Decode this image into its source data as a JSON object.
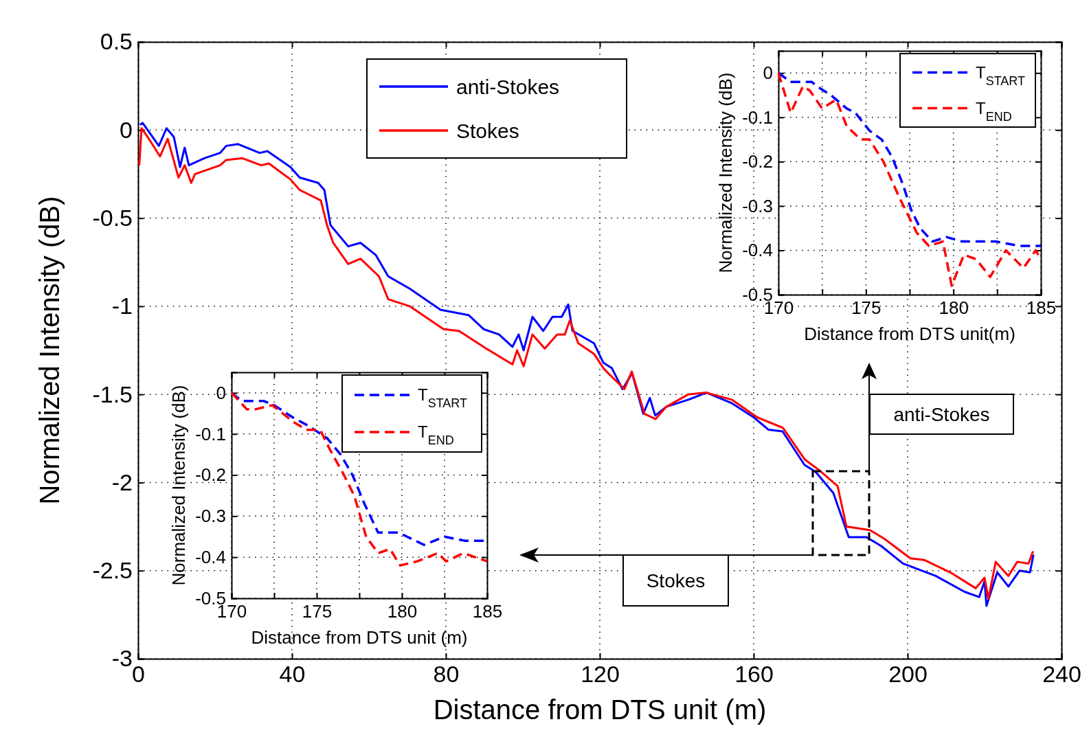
{
  "chart_data": [
    {
      "type": "line",
      "xlabel": "Distance from DTS unit (m)",
      "ylabel": "Normalized Intensity (dB)",
      "xlim": [
        0,
        240
      ],
      "ylim": [
        -3,
        0.5
      ],
      "xticks": [
        0,
        40,
        80,
        120,
        160,
        200,
        240
      ],
      "yticks": [
        0.5,
        0,
        -0.5,
        -1,
        -1.5,
        -2,
        -2.5,
        -3
      ],
      "grid": true,
      "legend": "top",
      "line_style": "solid",
      "annotations": [
        "anti-Stokes",
        "Stokes"
      ],
      "series": [
        {
          "name": "anti-Stokes",
          "color": "#0000ff",
          "x": [
            0.5,
            1.2,
            5.4,
            7.4,
            9.3,
            10.9,
            12.1,
            13.2,
            17.2,
            21.3,
            22.9,
            26.0,
            31.6,
            33.6,
            39.6,
            42.0,
            46.8,
            48.4,
            50.0,
            54.6,
            57.8,
            61.8,
            65.0,
            70.6,
            78.6,
            85.9,
            89.8,
            93.8,
            97.3,
            98.9,
            100.2,
            102.5,
            105.3,
            107.7,
            110.1,
            111.8,
            112.9,
            118.5,
            120.9,
            123.1,
            125.9,
            128.4,
            131.3,
            133.0,
            134.4,
            137.3,
            143.0,
            147.7,
            154.3,
            160.0,
            163.8,
            167.5,
            173.2,
            176.1,
            180.7,
            184.7,
            189.3,
            193.1,
            198.8,
            207.3,
            214.8,
            218.6,
            220.0,
            220.5,
            223.3,
            226.2,
            229.1,
            231.8,
            232.7
          ],
          "values": [
            0.03,
            0.04,
            -0.09,
            0.01,
            -0.04,
            -0.21,
            -0.1,
            -0.2,
            -0.16,
            -0.13,
            -0.09,
            -0.08,
            -0.13,
            -0.12,
            -0.21,
            -0.27,
            -0.3,
            -0.34,
            -0.54,
            -0.66,
            -0.64,
            -0.71,
            -0.83,
            -0.9,
            -1.02,
            -1.05,
            -1.13,
            -1.16,
            -1.23,
            -1.16,
            -1.25,
            -1.06,
            -1.14,
            -1.06,
            -1.06,
            -0.99,
            -1.14,
            -1.21,
            -1.32,
            -1.35,
            -1.47,
            -1.38,
            -1.61,
            -1.52,
            -1.62,
            -1.57,
            -1.53,
            -1.49,
            -1.55,
            -1.63,
            -1.7,
            -1.71,
            -1.9,
            -1.94,
            -2.06,
            -2.31,
            -2.31,
            -2.36,
            -2.46,
            -2.53,
            -2.62,
            -2.65,
            -2.56,
            -2.7,
            -2.51,
            -2.59,
            -2.5,
            -2.51,
            -2.41
          ]
        },
        {
          "name": "Stokes",
          "color": "#ff0000",
          "x": [
            0.3,
            0.9,
            2.5,
            5.7,
            7.7,
            10.5,
            12.1,
            13.8,
            14.8,
            21.3,
            22.9,
            27.1,
            32.0,
            34.0,
            39.6,
            42.0,
            47.5,
            49.1,
            50.7,
            54.6,
            57.8,
            62.6,
            65.0,
            70.6,
            79.4,
            83.4,
            90.5,
            97.3,
            98.5,
            100.2,
            102.5,
            105.7,
            108.9,
            110.9,
            112.2,
            114.4,
            118.5,
            120.9,
            122.2,
            126.4,
            128.3,
            131.6,
            134.5,
            137.3,
            143.0,
            147.7,
            154.3,
            160.9,
            167.6,
            173.3,
            177.0,
            181.8,
            184.1,
            190.2,
            194.0,
            200.7,
            204.4,
            211.1,
            217.7,
            220.0,
            221.0,
            222.9,
            226.2,
            228.5,
            231.4,
            232.6
          ],
          "values": [
            -0.2,
            0.01,
            -0.04,
            -0.15,
            -0.05,
            -0.27,
            -0.2,
            -0.3,
            -0.25,
            -0.2,
            -0.17,
            -0.16,
            -0.2,
            -0.19,
            -0.28,
            -0.34,
            -0.4,
            -0.54,
            -0.64,
            -0.76,
            -0.73,
            -0.83,
            -0.96,
            -1.0,
            -1.13,
            -1.14,
            -1.24,
            -1.33,
            -1.25,
            -1.34,
            -1.16,
            -1.24,
            -1.16,
            -1.16,
            -1.08,
            -1.21,
            -1.27,
            -1.35,
            -1.38,
            -1.47,
            -1.37,
            -1.61,
            -1.64,
            -1.57,
            -1.5,
            -1.49,
            -1.53,
            -1.63,
            -1.69,
            -1.87,
            -1.93,
            -2.02,
            -2.25,
            -2.27,
            -2.32,
            -2.43,
            -2.44,
            -2.51,
            -2.6,
            -2.54,
            -2.66,
            -2.45,
            -2.53,
            -2.45,
            -2.46,
            -2.39
          ]
        }
      ]
    },
    {
      "type": "line",
      "xlabel": "Distance from DTS unit(m)",
      "ylabel": "Normalized Intensity (dB)",
      "xlim": [
        170,
        185
      ],
      "ylim": [
        -0.5,
        0.05
      ],
      "xticks": [
        170,
        {
          "value": 172.5,
          "label": null
        },
        175,
        {
          "value": 177.5,
          "label": null
        },
        180,
        {
          "value": 182.5,
          "label": null
        },
        185
      ],
      "yticks": [
        0,
        -0.1,
        -0.2,
        -0.3,
        -0.4,
        -0.5
      ],
      "grid": true,
      "legend": "top right",
      "line_style": "dashed",
      "series": [
        {
          "name": "T$_{START}$",
          "color": "#0000ff",
          "x": [
            170,
            170.7,
            171.3,
            171.9,
            172.2,
            173.0,
            173.9,
            174.4,
            175.2,
            175.9,
            176.5,
            177.1,
            177.6,
            178.1,
            178.8,
            179.6,
            180.5,
            182.4,
            183.8,
            184.5,
            185
          ],
          "values": [
            0,
            -0.02,
            -0.02,
            -0.02,
            -0.03,
            -0.05,
            -0.08,
            -0.09,
            -0.13,
            -0.15,
            -0.19,
            -0.25,
            -0.31,
            -0.35,
            -0.38,
            -0.37,
            -0.38,
            -0.38,
            -0.39,
            -0.39,
            -0.39
          ]
        },
        {
          "name": "T$_{END}$",
          "color": "#ff0000",
          "x": [
            170,
            170.7,
            171.4,
            171.8,
            172.5,
            173.3,
            173.9,
            174.7,
            175.2,
            176.0,
            176.9,
            177.9,
            178.6,
            179.4,
            179.9,
            180.6,
            181.3,
            182.1,
            183.0,
            184.0,
            184.7,
            185
          ],
          "values": [
            0,
            -0.09,
            -0.03,
            -0.04,
            -0.08,
            -0.06,
            -0.12,
            -0.15,
            -0.15,
            -0.2,
            -0.28,
            -0.36,
            -0.39,
            -0.38,
            -0.48,
            -0.41,
            -0.42,
            -0.46,
            -0.4,
            -0.44,
            -0.4,
            -0.42
          ]
        }
      ]
    },
    {
      "type": "line",
      "xlabel": "Distance from DTS unit (m)",
      "ylabel": "Normalized Intensity (dB)",
      "xlim": [
        170,
        185
      ],
      "ylim": [
        -0.5,
        0.05
      ],
      "xticks": [
        170,
        {
          "value": 172.5,
          "label": null
        },
        175,
        {
          "value": 177.5,
          "label": null
        },
        180,
        {
          "value": 182.5,
          "label": null
        },
        185
      ],
      "yticks": [
        0,
        -0.1,
        -0.2,
        -0.3,
        -0.4,
        -0.5
      ],
      "grid": true,
      "legend": "top right",
      "line_style": "dashed",
      "series": [
        {
          "name": "T$_{START}$",
          "color": "#0000ff",
          "x": [
            170,
            170.6,
            171.9,
            172.5,
            173.6,
            174.5,
            175.6,
            176.4,
            177.1,
            177.8,
            178.6,
            179.8,
            181.3,
            182.5,
            183.7,
            185
          ],
          "values": [
            0,
            -0.02,
            -0.02,
            -0.03,
            -0.06,
            -0.08,
            -0.11,
            -0.15,
            -0.2,
            -0.27,
            -0.34,
            -0.34,
            -0.37,
            -0.35,
            -0.36,
            -0.36
          ]
        },
        {
          "name": "T$_{END}$",
          "color": "#ff0000",
          "x": [
            170,
            170.9,
            171.4,
            172.4,
            173.6,
            174.4,
            175.2,
            175.8,
            176.6,
            177.2,
            177.9,
            178.6,
            179.3,
            179.9,
            180.9,
            182.1,
            182.6,
            183.6,
            185
          ],
          "values": [
            0,
            -0.04,
            -0.04,
            -0.03,
            -0.07,
            -0.09,
            -0.09,
            -0.14,
            -0.2,
            -0.25,
            -0.35,
            -0.39,
            -0.38,
            -0.42,
            -0.41,
            -0.39,
            -0.41,
            -0.39,
            -0.41
          ]
        }
      ]
    }
  ]
}
